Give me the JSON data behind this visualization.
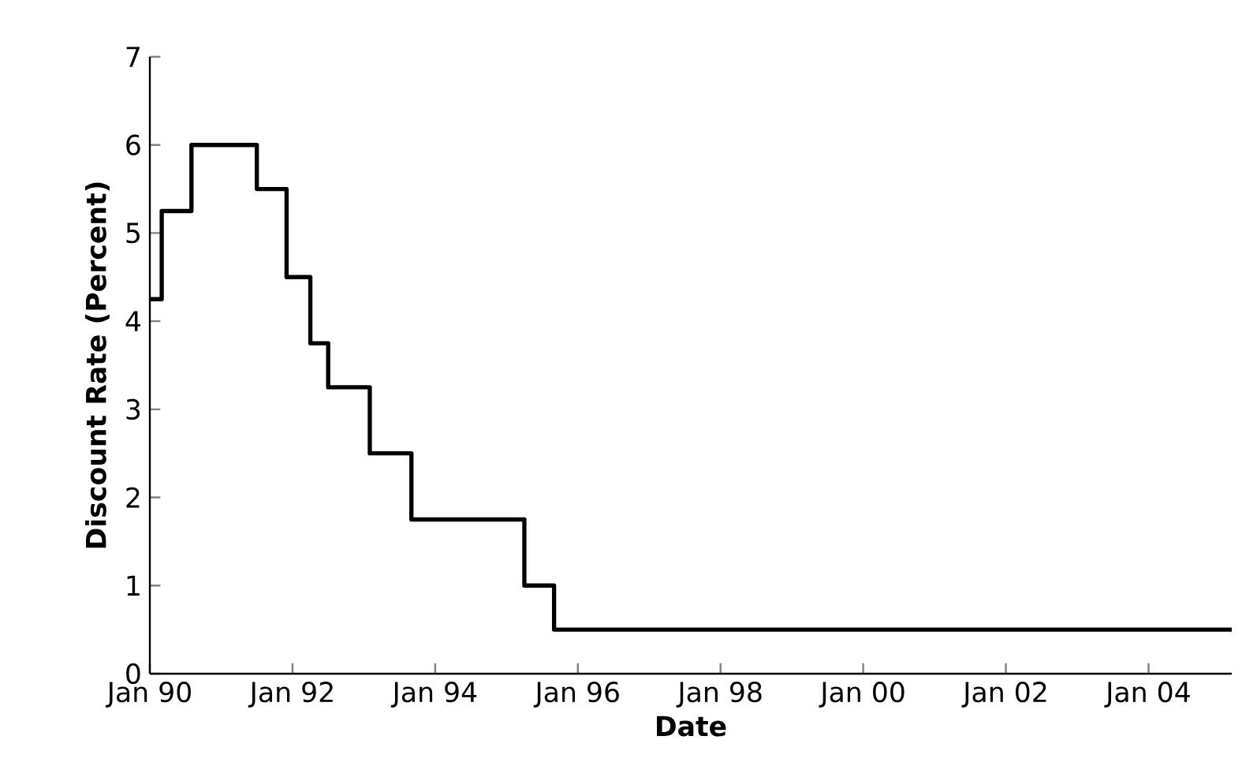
{
  "chart_data": {
    "type": "step",
    "xlabel": "Date",
    "ylabel": "Discount Rate (Percent)",
    "x": [
      "1990-01",
      "1990-03",
      "1990-08",
      "1991-07",
      "1991-12",
      "1992-04",
      "1992-07",
      "1993-02",
      "1993-09",
      "1995-04",
      "1995-09",
      "2005-03"
    ],
    "series": [
      {
        "color": "#000000",
        "values": [
          4.25,
          5.25,
          6.0,
          5.5,
          4.5,
          3.75,
          3.25,
          2.5,
          1.75,
          1.0,
          0.5,
          0.5
        ]
      }
    ],
    "xlim": [
      "1990-01",
      "2005-03"
    ],
    "xticks": [
      {
        "value": "1990-01",
        "label": "Jan 90"
      },
      {
        "value": "1992-01",
        "label": "Jan 92"
      },
      {
        "value": "1994-01",
        "label": "Jan 94"
      },
      {
        "value": "1996-01",
        "label": "Jan 96"
      },
      {
        "value": "1998-01",
        "label": "Jan 98"
      },
      {
        "value": "2000-01",
        "label": "Jan 00"
      },
      {
        "value": "2002-01",
        "label": "Jan 02"
      },
      {
        "value": "2004-01",
        "label": "Jan 04"
      }
    ],
    "ylim": [
      0,
      7
    ],
    "yticks": [
      0,
      1,
      2,
      3,
      4,
      5,
      6,
      7
    ]
  }
}
